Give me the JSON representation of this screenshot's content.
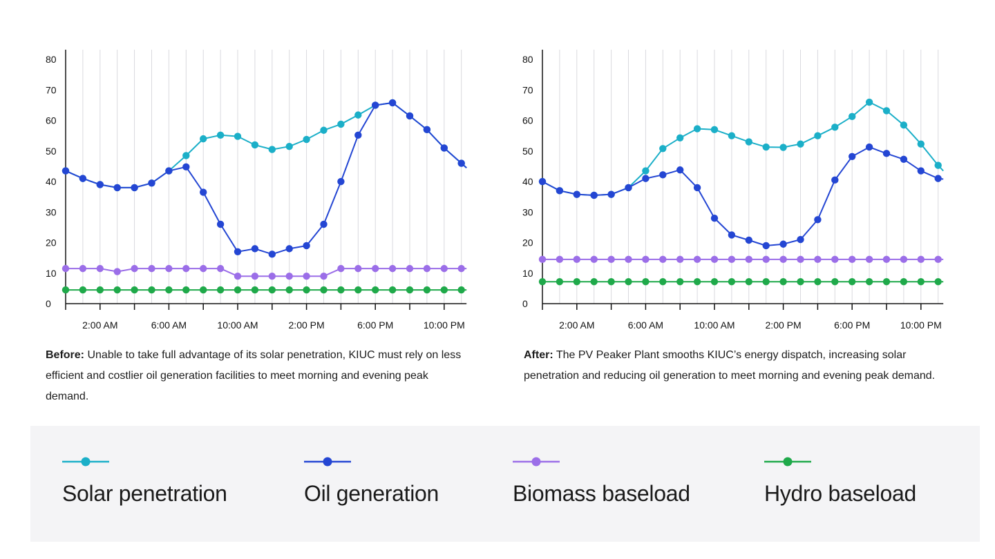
{
  "chart_data": [
    {
      "type": "line",
      "id": "before",
      "x_ticks": [
        "2:00 AM",
        "6:00 AM",
        "10:00 AM",
        "2:00 PM",
        "6:00 PM",
        "10:00 PM"
      ],
      "y_ticks": [
        0,
        10,
        20,
        30,
        40,
        50,
        60,
        70,
        80
      ],
      "ylim": [
        0,
        85
      ],
      "xlim": [
        0,
        23.3
      ],
      "grid": "vertical",
      "x_hours": [
        0,
        1,
        2,
        3,
        4,
        5,
        6,
        7,
        8,
        9,
        10,
        11,
        12,
        13,
        14,
        15,
        16,
        17,
        18,
        19,
        20,
        21,
        22,
        23
      ],
      "series": [
        {
          "key": "solar",
          "values": [
            43.5,
            41,
            39,
            38,
            38,
            39.5,
            43.5,
            48.5,
            54,
            55.2,
            54.8,
            52,
            50.5,
            51.5,
            53.8,
            56.8,
            58.8,
            61.8,
            65,
            65.8,
            61.5,
            57,
            51,
            46
          ]
        },
        {
          "key": "oil",
          "values": [
            43.5,
            41,
            39,
            38,
            38,
            39.5,
            43.5,
            44.8,
            36.5,
            26,
            17,
            18,
            16.2,
            18,
            19,
            26,
            40,
            55.2,
            65,
            65.8,
            61.5,
            57,
            51,
            46
          ]
        },
        {
          "key": "biomass",
          "values": [
            11.5,
            11.5,
            11.5,
            10.5,
            11.5,
            11.5,
            11.5,
            11.5,
            11.5,
            11.5,
            9,
            9,
            9,
            9,
            9,
            9,
            11.5,
            11.5,
            11.5,
            11.5,
            11.5,
            11.5,
            11.5,
            11.5
          ]
        },
        {
          "key": "hydro",
          "values": [
            4.5,
            4.5,
            4.5,
            4.5,
            4.5,
            4.5,
            4.5,
            4.5,
            4.5,
            4.5,
            4.5,
            4.5,
            4.5,
            4.5,
            4.5,
            4.5,
            4.5,
            4.5,
            4.5,
            4.5,
            4.5,
            4.5,
            4.5,
            4.5
          ]
        }
      ],
      "line_end": {
        "solar": 44.5,
        "oil": 44.5,
        "biomass": 11.5,
        "hydro": 4.5
      }
    },
    {
      "type": "line",
      "id": "after",
      "x_ticks": [
        "2:00 AM",
        "6:00 AM",
        "10:00 AM",
        "2:00 PM",
        "6:00 PM",
        "10:00 PM"
      ],
      "y_ticks": [
        0,
        10,
        20,
        30,
        40,
        50,
        60,
        70,
        80
      ],
      "ylim": [
        0,
        85
      ],
      "xlim": [
        0,
        23.3
      ],
      "grid": "vertical",
      "x_hours": [
        0,
        1,
        2,
        3,
        4,
        5,
        6,
        7,
        8,
        9,
        10,
        11,
        12,
        13,
        14,
        15,
        16,
        17,
        18,
        19,
        20,
        21,
        22,
        23
      ],
      "series": [
        {
          "key": "solar",
          "values": [
            40,
            37,
            35.8,
            35.5,
            35.8,
            38,
            43.5,
            50.8,
            54.3,
            57.3,
            57,
            55,
            53,
            51.3,
            51.2,
            52.3,
            55,
            57.8,
            61.3,
            66,
            63.2,
            58.5,
            52.3,
            45.3
          ]
        },
        {
          "key": "oil",
          "values": [
            40,
            37,
            35.8,
            35.5,
            35.8,
            38,
            41,
            42.2,
            43.8,
            38,
            28,
            22.5,
            20.8,
            19,
            19.5,
            21,
            27.5,
            40.5,
            48.2,
            51.3,
            49.2,
            47.3,
            43.5,
            41
          ]
        },
        {
          "key": "biomass",
          "values": [
            14.5,
            14.5,
            14.5,
            14.5,
            14.5,
            14.5,
            14.5,
            14.5,
            14.5,
            14.5,
            14.5,
            14.5,
            14.5,
            14.5,
            14.5,
            14.5,
            14.5,
            14.5,
            14.5,
            14.5,
            14.5,
            14.5,
            14.5,
            14.5
          ]
        },
        {
          "key": "hydro",
          "values": [
            7.2,
            7.2,
            7.2,
            7.2,
            7.2,
            7.2,
            7.2,
            7.2,
            7.2,
            7.2,
            7.2,
            7.2,
            7.2,
            7.2,
            7.2,
            7.2,
            7.2,
            7.2,
            7.2,
            7.2,
            7.2,
            7.2,
            7.2,
            7.2
          ]
        }
      ],
      "line_end": {
        "solar": 43.5,
        "oil": 40.8,
        "biomass": 14.5,
        "hydro": 7.2
      }
    }
  ],
  "captions": {
    "before": {
      "bold": "Before:",
      "text": " Unable to take full advantage of its solar penetration, KIUC must rely on less efficient and costlier oil generation facilities to meet morning and evening peak demand."
    },
    "after": {
      "bold": "After:",
      "text": " The PV Peaker Plant smooths KIUC’s energy dispatch, increasing solar penetration and reducing oil generation to meet morning and evening peak demand."
    }
  },
  "legend": [
    {
      "key": "solar",
      "label": "Solar penetration",
      "color": "#1bafc8"
    },
    {
      "key": "oil",
      "label": "Oil generation",
      "color": "#2446d3"
    },
    {
      "key": "biomass",
      "label": "Biomass baseload",
      "color": "#9b6ee8"
    },
    {
      "key": "hydro",
      "label": "Hydro baseload",
      "color": "#1fa94a"
    }
  ],
  "colors": {
    "solar": "#1bafc8",
    "oil": "#2446d3",
    "biomass": "#9b6ee8",
    "hydro": "#1fa94a",
    "grid": "#d9d9de",
    "axis": "#111111"
  }
}
